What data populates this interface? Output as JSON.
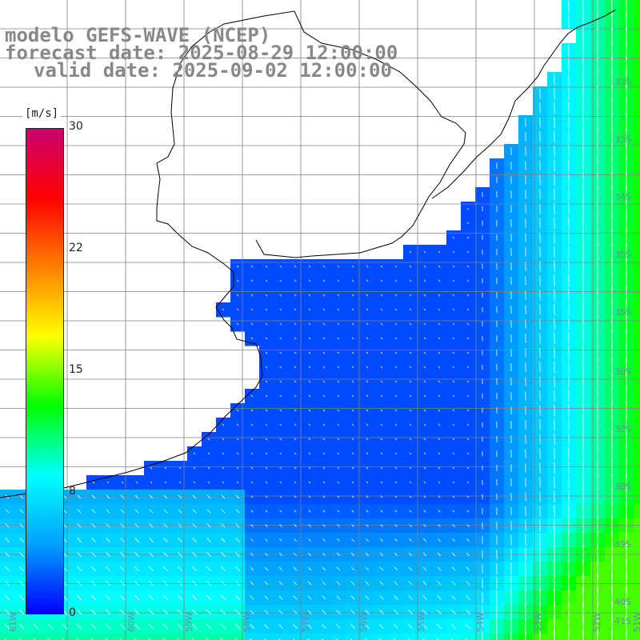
{
  "title": {
    "line1": "modelo GEFS-WAVE (NCEP)",
    "line2": "forecast date: 2025-08-29 12:00:00",
    "line3": "valid date: 2025-09-02 12:00:00"
  },
  "colorbar": {
    "units": "[m/s]",
    "ticks": [
      "30",
      "22",
      "15",
      "8",
      "0"
    ],
    "stops": [
      "#0000ff",
      "#00a0ff",
      "#00ffff",
      "#00ff00",
      "#ffff00",
      "#ff8000",
      "#ff0000",
      "#c8006e"
    ]
  },
  "map": {
    "lat_labels": [
      "33S",
      "33S",
      "34S",
      "35S",
      "35S",
      "36S",
      "37S",
      "38S",
      "39S",
      "40S",
      "41S"
    ],
    "lon_labels": [
      "61W",
      "60W",
      "59W",
      "58W",
      "57W",
      "56W",
      "55W",
      "54W",
      "53W",
      "52W",
      "51W"
    ],
    "colors": {
      "land": "#ffffff",
      "coast": "#000000",
      "grid": "#808080"
    },
    "field": "wind speed and direction"
  }
}
